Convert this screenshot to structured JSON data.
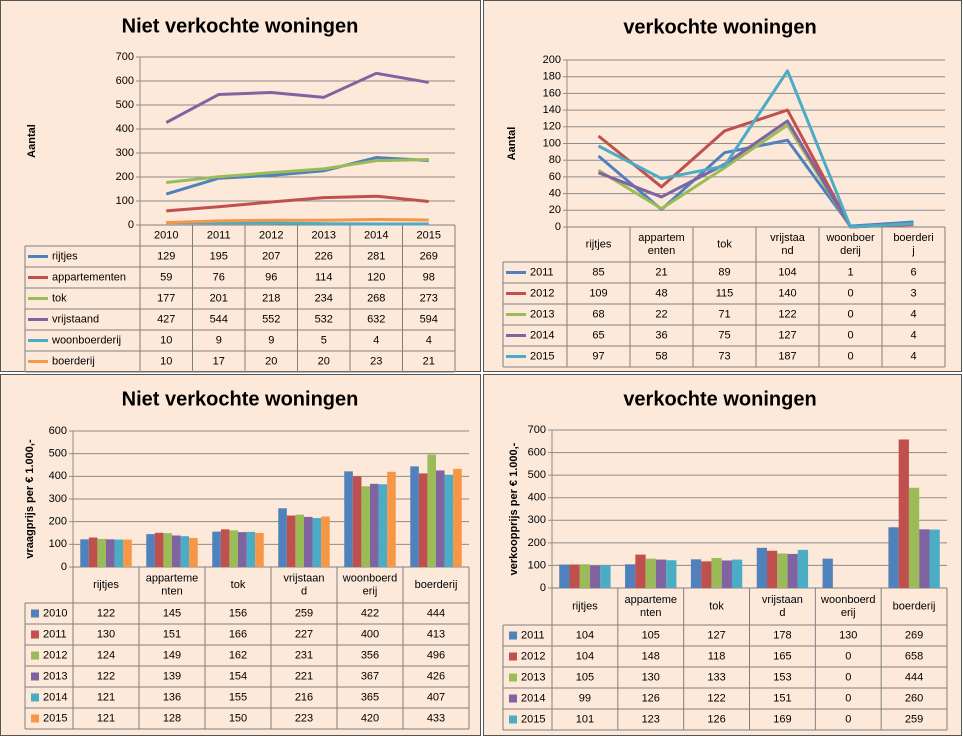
{
  "chart_data": [
    {
      "type": "line",
      "title": "Niet verkochte woningen",
      "y_label": "Aantal",
      "categories": [
        "2010",
        "2011",
        "2012",
        "2013",
        "2014",
        "2015"
      ],
      "series": [
        {
          "name": "rijtjes",
          "color": "#4f81bd",
          "values": [
            129,
            195,
            207,
            226,
            281,
            269
          ]
        },
        {
          "name": "appartementen",
          "color": "#c0504d",
          "values": [
            59,
            76,
            96,
            114,
            120,
            98
          ]
        },
        {
          "name": "tok",
          "color": "#9bbb59",
          "values": [
            177,
            201,
            218,
            234,
            268,
            273
          ]
        },
        {
          "name": "vrijstaand",
          "color": "#8064a2",
          "values": [
            427,
            544,
            552,
            532,
            632,
            594
          ]
        },
        {
          "name": "woonboerderij",
          "color": "#4bacc6",
          "values": [
            10,
            9,
            9,
            5,
            4,
            4
          ]
        },
        {
          "name": "boerderij",
          "color": "#f79646",
          "values": [
            10,
            17,
            20,
            20,
            23,
            21
          ]
        }
      ],
      "ylim": [
        0,
        700
      ],
      "yticks": [
        0,
        100,
        200,
        300,
        400,
        500,
        600,
        700
      ],
      "grid": true
    },
    {
      "type": "line",
      "title": "verkochte woningen",
      "y_label": "Aantal",
      "categories": [
        "rijtjes",
        "appartementen",
        "tok",
        "vrijstaand",
        "woonboerderij",
        "boerderij"
      ],
      "series": [
        {
          "name": "2011",
          "color": "#4f81bd",
          "values": [
            85,
            21,
            89,
            104,
            1,
            6
          ]
        },
        {
          "name": "2012",
          "color": "#c0504d",
          "values": [
            109,
            48,
            115,
            140,
            0,
            3
          ]
        },
        {
          "name": "2013",
          "color": "#9bbb59",
          "values": [
            68,
            22,
            71,
            122,
            0,
            4
          ]
        },
        {
          "name": "2014",
          "color": "#8064a2",
          "values": [
            65,
            36,
            75,
            127,
            0,
            4
          ]
        },
        {
          "name": "2015",
          "color": "#4bacc6",
          "values": [
            97,
            58,
            73,
            187,
            0,
            4
          ]
        }
      ],
      "ylim": [
        0,
        200
      ],
      "yticks": [
        0,
        20,
        40,
        60,
        80,
        100,
        120,
        140,
        160,
        180,
        200
      ],
      "grid": true
    },
    {
      "type": "bar",
      "title": "Niet verkochte woningen",
      "y_label": "vraagprijs per € 1.000,-",
      "categories": [
        "rijtjes",
        "appartementen",
        "tok",
        "vrijstaand",
        "woonboerderij",
        "boerderij"
      ],
      "series": [
        {
          "name": "2010",
          "color": "#4f81bd",
          "values": [
            122,
            145,
            156,
            259,
            422,
            444
          ]
        },
        {
          "name": "2011",
          "color": "#c0504d",
          "values": [
            130,
            151,
            166,
            227,
            400,
            413
          ]
        },
        {
          "name": "2012",
          "color": "#9bbb59",
          "values": [
            124,
            149,
            162,
            231,
            356,
            496
          ]
        },
        {
          "name": "2013",
          "color": "#8064a2",
          "values": [
            122,
            139,
            154,
            221,
            367,
            426
          ]
        },
        {
          "name": "2014",
          "color": "#4bacc6",
          "values": [
            121,
            136,
            155,
            216,
            365,
            407
          ]
        },
        {
          "name": "2015",
          "color": "#f79646",
          "values": [
            121,
            128,
            150,
            223,
            420,
            433
          ]
        }
      ],
      "ylim": [
        0,
        600
      ],
      "yticks": [
        0,
        100,
        200,
        300,
        400,
        500,
        600
      ],
      "grid": true
    },
    {
      "type": "bar",
      "title": "verkochte woningen",
      "y_label": "verkoopprijs per € 1.000,-",
      "categories": [
        "rijtjes",
        "appartementen",
        "tok",
        "vrijstaand",
        "woonboerderij",
        "boerderij"
      ],
      "series": [
        {
          "name": "2011",
          "color": "#4f81bd",
          "values": [
            104,
            105,
            127,
            178,
            130,
            269
          ]
        },
        {
          "name": "2012",
          "color": "#c0504d",
          "values": [
            104,
            148,
            118,
            165,
            0,
            658
          ]
        },
        {
          "name": "2013",
          "color": "#9bbb59",
          "values": [
            105,
            130,
            133,
            153,
            0,
            444
          ]
        },
        {
          "name": "2014",
          "color": "#8064a2",
          "values": [
            99,
            126,
            122,
            151,
            0,
            260
          ]
        },
        {
          "name": "2015",
          "color": "#4bacc6",
          "values": [
            101,
            123,
            126,
            169,
            0,
            259
          ]
        }
      ],
      "ylim": [
        0,
        700
      ],
      "yticks": [
        0,
        100,
        200,
        300,
        400,
        500,
        600,
        700
      ],
      "grid": true
    }
  ]
}
